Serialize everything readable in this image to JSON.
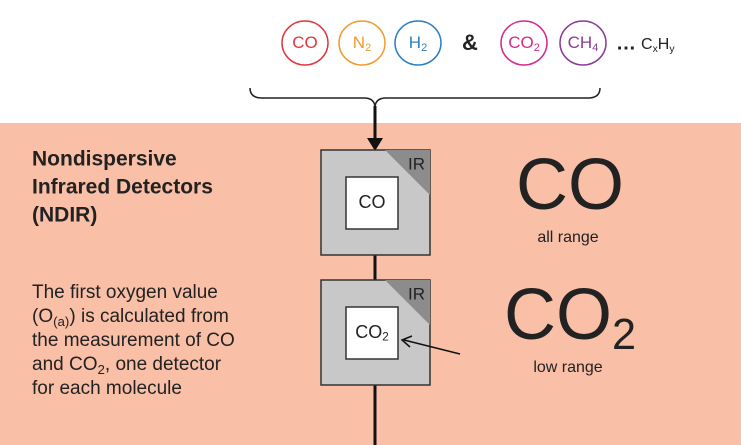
{
  "molecules": [
    {
      "text": "CO",
      "color": "#e0383e"
    },
    {
      "text": "N",
      "sub": "2",
      "color": "#f29a2e"
    },
    {
      "text": "H",
      "sub": "2",
      "color": "#2f7fc1"
    },
    {
      "text": "CO",
      "sub": "2",
      "color": "#d6298f"
    },
    {
      "text": "CH",
      "sub": "4",
      "color": "#8c3b97"
    }
  ],
  "ampersand": "&",
  "ellipsis": "…",
  "more": [
    {
      "text": "C"
    },
    {
      "text": "x",
      "sub": true
    },
    {
      "text": "H"
    },
    {
      "text": "y",
      "sub": true
    }
  ],
  "section": {
    "title": [
      "Nondispersive",
      "Infrared Detectors",
      "(NDIR)"
    ],
    "description": [
      [
        {
          "text": "The first oxygen value"
        }
      ],
      [
        {
          "text": "(O"
        },
        {
          "text": "(a)",
          "sub": true
        },
        {
          "text": ") is calculated from"
        }
      ],
      [
        {
          "text": "the measurement of CO"
        }
      ],
      [
        {
          "text": "and CO"
        },
        {
          "text": "2",
          "sub": true
        },
        {
          "text": ", one detector"
        }
      ],
      [
        {
          "text": "for each molecule"
        }
      ]
    ]
  },
  "detectors": [
    {
      "tag": "IR",
      "label": [
        {
          "text": "CO"
        }
      ],
      "name": [
        {
          "text": "CO"
        }
      ],
      "range": "all range"
    },
    {
      "tag": "IR",
      "label": [
        {
          "text": "CO"
        },
        {
          "text": "2",
          "sub": true
        }
      ],
      "name": [
        {
          "text": "CO"
        },
        {
          "text": "2",
          "sub": true
        }
      ],
      "range": "low range"
    }
  ]
}
